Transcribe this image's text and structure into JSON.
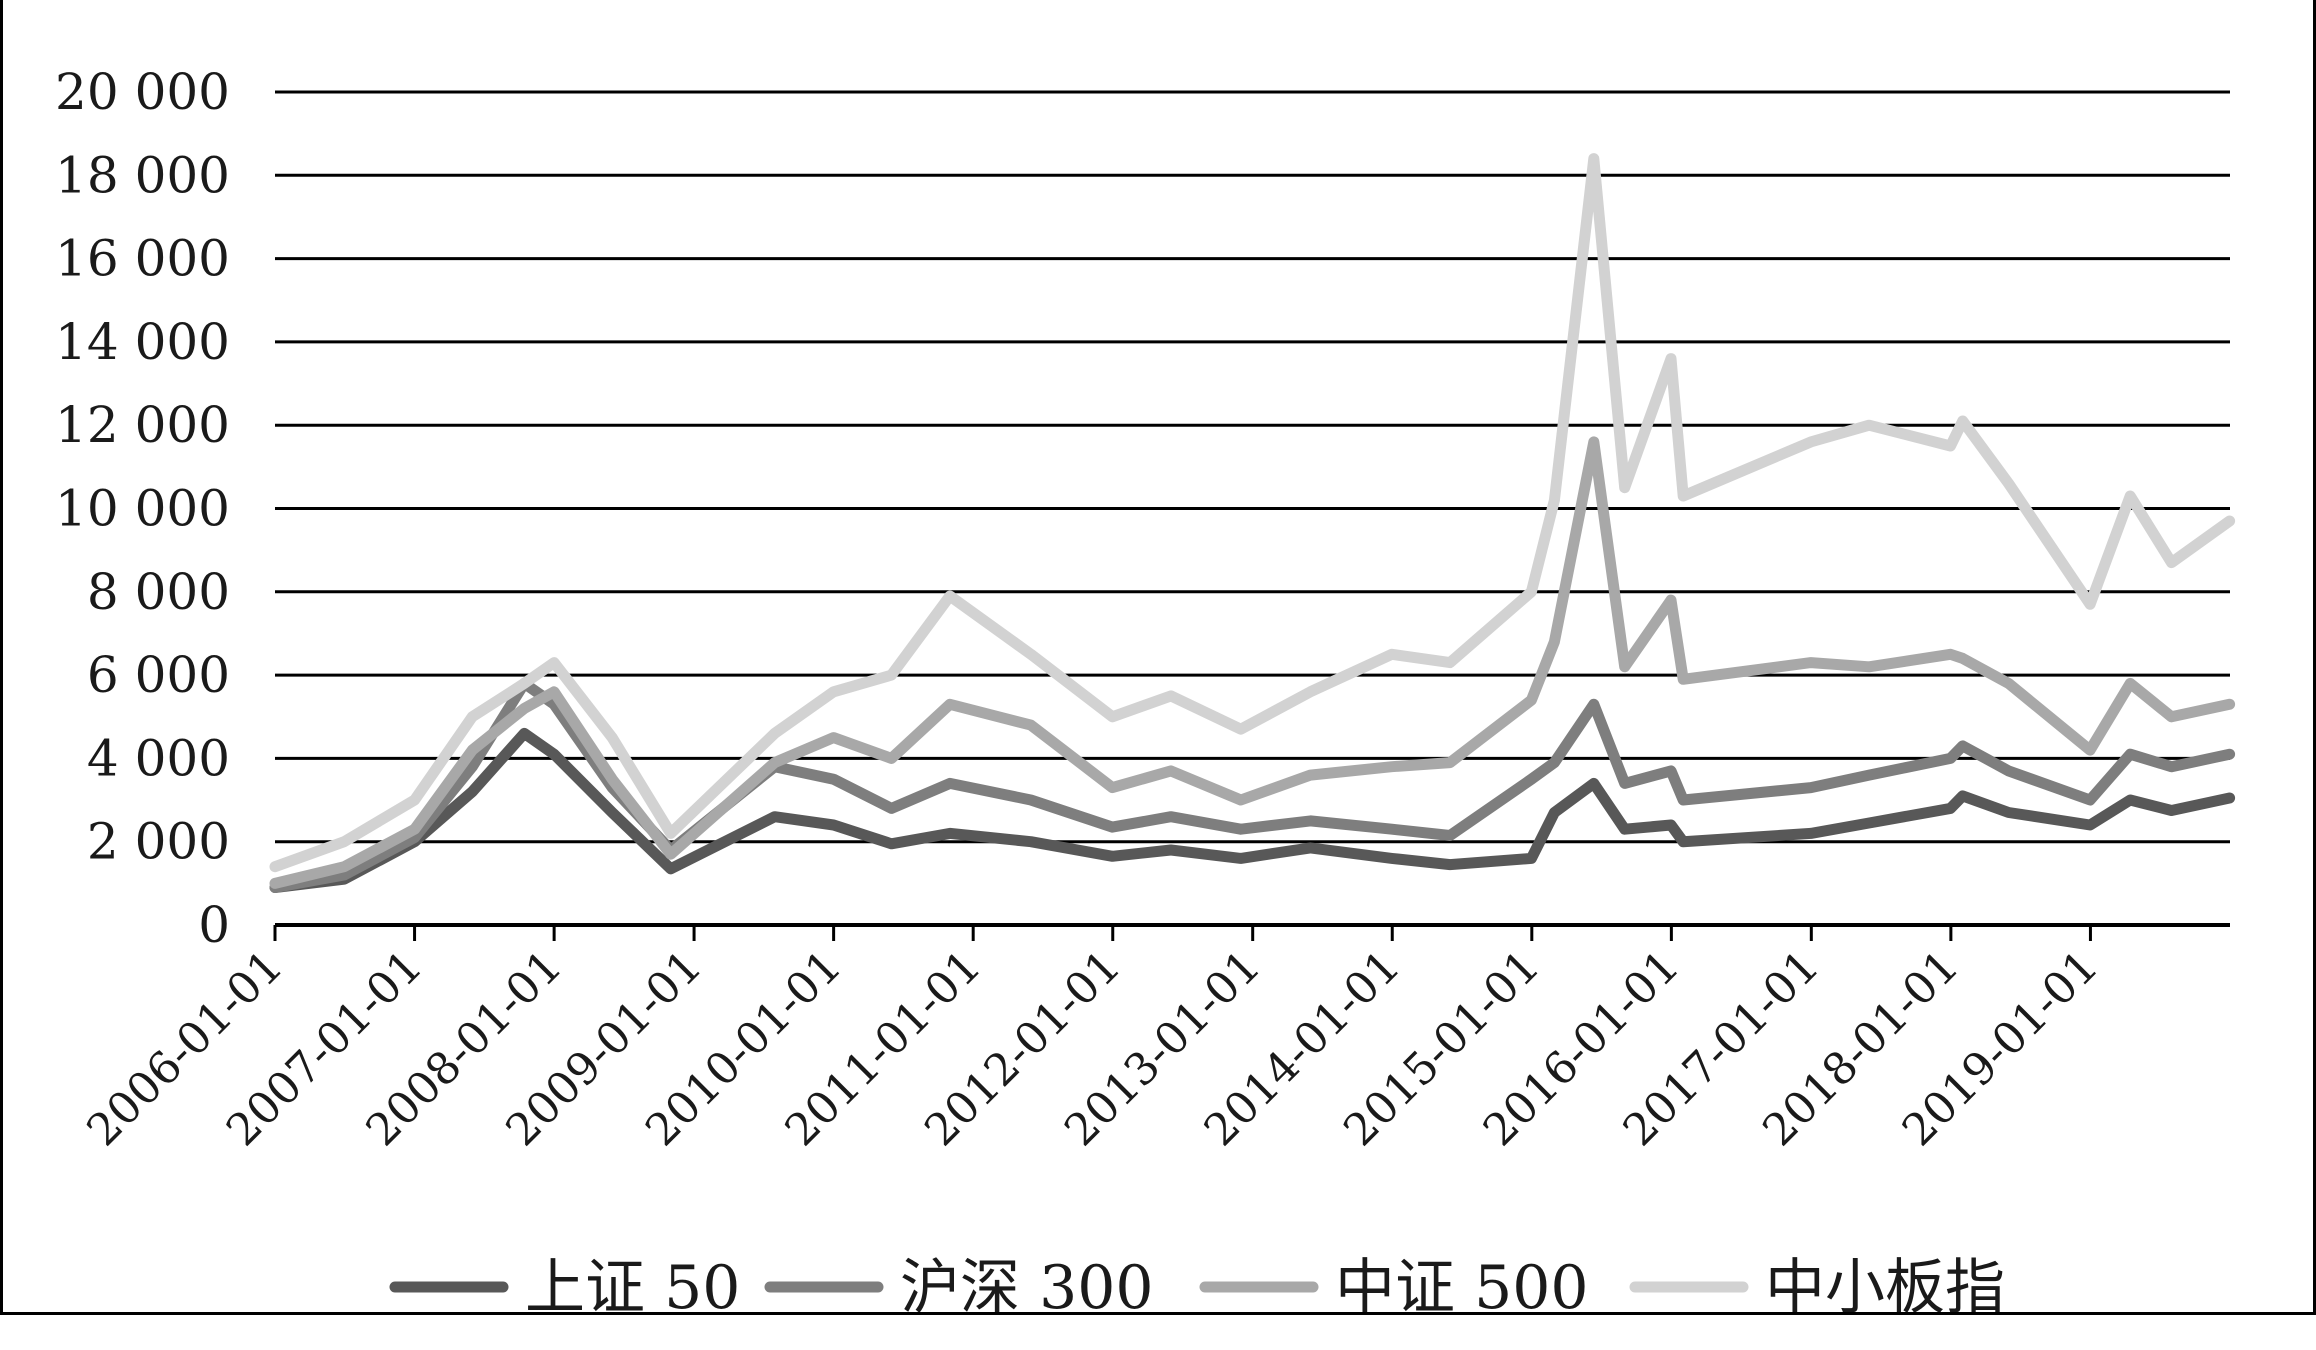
{
  "chart_data": {
    "type": "line",
    "title": "",
    "xlabel": "",
    "ylabel": "",
    "ylim": [
      0,
      20000
    ],
    "yticks": [
      {
        "value": 0,
        "label": "0"
      },
      {
        "value": 2000,
        "label": "2 000"
      },
      {
        "value": 4000,
        "label": "4 000"
      },
      {
        "value": 6000,
        "label": "6 000"
      },
      {
        "value": 8000,
        "label": "8 000"
      },
      {
        "value": 10000,
        "label": "10 000"
      },
      {
        "value": 12000,
        "label": "12 000"
      },
      {
        "value": 14000,
        "label": "14 000"
      },
      {
        "value": 16000,
        "label": "16 000"
      },
      {
        "value": 18000,
        "label": "18 000"
      },
      {
        "value": 20000,
        "label": "20 000"
      }
    ],
    "xlim": [
      "2006-01-01",
      "2020-01-01"
    ],
    "xticks": [
      "2006-01-01",
      "2007-01-01",
      "2008-01-01",
      "2009-01-01",
      "2010-01-01",
      "2011-01-01",
      "2012-01-01",
      "2013-01-01",
      "2014-01-01",
      "2015-01-01",
      "2016-01-01",
      "2017-01-01",
      "2018-01-01",
      "2019-01-01"
    ],
    "grid": true,
    "legend_position": "bottom",
    "series": [
      {
        "name": "上证 50",
        "color": "#585858",
        "x": [
          "2006-01-01",
          "2006-07-01",
          "2007-01-01",
          "2007-06-01",
          "2007-10-15",
          "2008-01-01",
          "2008-06-01",
          "2008-11-01",
          "2009-07-31",
          "2010-01-01",
          "2010-06-01",
          "2010-11-01",
          "2011-06-01",
          "2011-12-31",
          "2012-06-01",
          "2012-12-01",
          "2013-06-01",
          "2013-12-31",
          "2014-06-01",
          "2014-12-31",
          "2015-03-01",
          "2015-06-12",
          "2015-09-01",
          "2015-12-31",
          "2016-02-01",
          "2016-12-31",
          "2017-06-01",
          "2017-12-31",
          "2018-02-01",
          "2018-06-01",
          "2018-12-31",
          "2019-04-15",
          "2019-08-01",
          "2019-12-31"
        ],
        "y": [
          900,
          1100,
          2000,
          3200,
          4600,
          4100,
          2700,
          1350,
          2600,
          2400,
          1950,
          2200,
          2000,
          1650,
          1800,
          1600,
          1850,
          1600,
          1450,
          1600,
          2700,
          3400,
          2300,
          2400,
          2000,
          2200,
          2450,
          2800,
          3100,
          2700,
          2400,
          3000,
          2750,
          3050
        ]
      },
      {
        "name": "沪深 300",
        "color": "#7e7e7e",
        "x": [
          "2006-01-01",
          "2006-07-01",
          "2007-01-01",
          "2007-06-01",
          "2007-10-15",
          "2008-01-01",
          "2008-06-01",
          "2008-11-01",
          "2009-07-31",
          "2010-01-01",
          "2010-06-01",
          "2010-11-01",
          "2011-06-01",
          "2011-12-31",
          "2012-06-01",
          "2012-12-01",
          "2013-06-01",
          "2013-12-31",
          "2014-06-01",
          "2014-12-31",
          "2015-03-01",
          "2015-06-12",
          "2015-09-01",
          "2015-12-31",
          "2016-02-01",
          "2016-12-31",
          "2017-06-01",
          "2017-12-31",
          "2018-02-01",
          "2018-06-01",
          "2018-12-31",
          "2019-04-15",
          "2019-08-01",
          "2019-12-31"
        ],
        "y": [
          900,
          1200,
          2100,
          3800,
          5800,
          5300,
          3300,
          1800,
          3800,
          3500,
          2800,
          3400,
          3000,
          2350,
          2600,
          2300,
          2500,
          2300,
          2150,
          3500,
          3900,
          5300,
          3400,
          3700,
          3000,
          3300,
          3600,
          4000,
          4300,
          3700,
          3000,
          4100,
          3800,
          4100
        ]
      },
      {
        "name": "中证 500",
        "color": "#a8a8a8",
        "x": [
          "2006-01-01",
          "2006-07-01",
          "2007-01-01",
          "2007-06-01",
          "2007-10-15",
          "2008-01-01",
          "2008-06-01",
          "2008-11-01",
          "2009-07-31",
          "2010-01-01",
          "2010-06-01",
          "2010-11-01",
          "2011-06-01",
          "2011-12-31",
          "2012-06-01",
          "2012-12-01",
          "2013-06-01",
          "2013-12-31",
          "2014-06-01",
          "2014-12-31",
          "2015-03-01",
          "2015-06-12",
          "2015-09-01",
          "2015-12-31",
          "2016-02-01",
          "2016-12-31",
          "2017-06-01",
          "2017-12-31",
          "2018-02-01",
          "2018-06-01",
          "2018-12-31",
          "2019-04-15",
          "2019-08-01",
          "2019-12-31"
        ],
        "y": [
          1000,
          1400,
          2300,
          4200,
          5200,
          5600,
          3500,
          1700,
          3900,
          4500,
          4000,
          5300,
          4800,
          3300,
          3700,
          3000,
          3600,
          3800,
          3900,
          5400,
          6800,
          11600,
          6200,
          7800,
          5900,
          6300,
          6200,
          6500,
          6400,
          5800,
          4200,
          5800,
          5000,
          5300
        ]
      },
      {
        "name": "中小板指",
        "color": "#d2d2d2",
        "x": [
          "2006-01-01",
          "2006-07-01",
          "2007-01-01",
          "2007-06-01",
          "2007-10-15",
          "2008-01-01",
          "2008-06-01",
          "2008-11-01",
          "2009-07-31",
          "2010-01-01",
          "2010-06-01",
          "2010-11-01",
          "2011-06-01",
          "2011-12-31",
          "2012-06-01",
          "2012-12-01",
          "2013-06-01",
          "2013-12-31",
          "2014-06-01",
          "2014-12-31",
          "2015-03-01",
          "2015-06-12",
          "2015-09-01",
          "2015-12-31",
          "2016-02-01",
          "2016-12-31",
          "2017-06-01",
          "2017-12-31",
          "2018-02-01",
          "2018-06-01",
          "2018-12-31",
          "2019-04-15",
          "2019-08-01",
          "2019-12-31"
        ],
        "y": [
          1400,
          2000,
          3000,
          5000,
          5800,
          6300,
          4500,
          2200,
          4600,
          5600,
          6000,
          7900,
          6500,
          5000,
          5500,
          4700,
          5600,
          6500,
          6300,
          8000,
          10200,
          18400,
          10500,
          13600,
          10300,
          11600,
          12000,
          11500,
          12100,
          10600,
          7700,
          10300,
          8700,
          9700
        ]
      }
    ]
  }
}
